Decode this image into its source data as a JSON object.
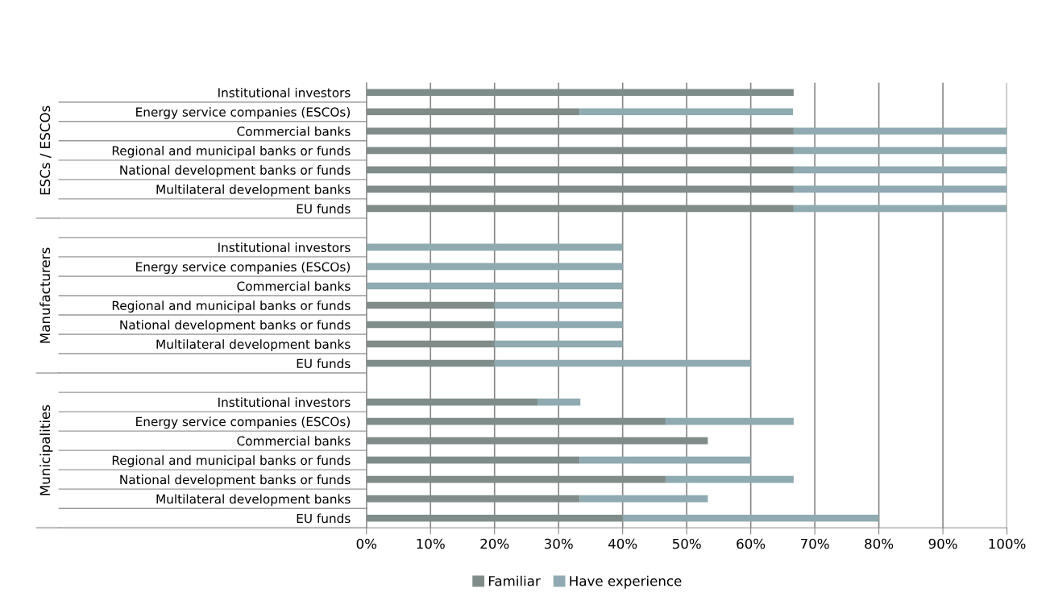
{
  "chart_data": {
    "type": "bar",
    "orientation": "horizontal",
    "stacked": true,
    "categories": [
      "Institutional investors",
      "Energy service companies (ESCOs)",
      "Commercial banks",
      "Regional and municipal banks or funds",
      "National development banks or funds",
      "Multilateral development banks",
      "EU funds",
      null,
      "Institutional investors",
      "Energy service companies (ESCOs)",
      "Commercial banks",
      "Regional and municipal banks or funds",
      "National development banks or funds",
      "Multilateral development banks",
      "EU funds",
      null,
      "Institutional investors",
      "Energy service companies (ESCOs)",
      "Commercial banks",
      "Regional and municipal banks or funds",
      "National development banks or funds",
      "Multilateral development banks",
      "EU funds"
    ],
    "series": [
      {
        "name": "Familiar",
        "color": "#7f8c8a",
        "values": [
          66.7,
          33.3,
          66.7,
          66.7,
          66.7,
          66.7,
          66.7,
          null,
          0,
          0,
          0,
          20,
          20,
          20,
          20,
          null,
          26.7,
          46.7,
          53.3,
          33.3,
          46.7,
          33.3,
          40
        ]
      },
      {
        "name": "Have experience",
        "color": "#8faab1",
        "values": [
          0,
          33.3,
          33.3,
          33.3,
          33.3,
          33.3,
          33.3,
          null,
          40,
          40,
          40,
          20,
          20,
          20,
          40,
          null,
          6.7,
          20,
          0,
          26.7,
          20,
          20,
          40
        ]
      }
    ],
    "annotations": [
      "ESCs / ESCOs",
      "Manufacturers",
      "Municipalities"
    ],
    "xlim": [
      0,
      100
    ],
    "xticks": [
      {
        "value": 0,
        "label": "0%"
      },
      {
        "value": 10,
        "label": "10%"
      },
      {
        "value": 20,
        "label": "20%"
      },
      {
        "value": 30,
        "label": "30%"
      },
      {
        "value": 40,
        "label": "40%"
      },
      {
        "value": 50,
        "label": "50%"
      },
      {
        "value": 60,
        "label": "60%"
      },
      {
        "value": 70,
        "label": "70%"
      },
      {
        "value": 80,
        "label": "80%"
      },
      {
        "value": 90,
        "label": "90%"
      },
      {
        "value": 100,
        "label": "100%"
      }
    ],
    "grid": "x",
    "legend": "bottom"
  }
}
